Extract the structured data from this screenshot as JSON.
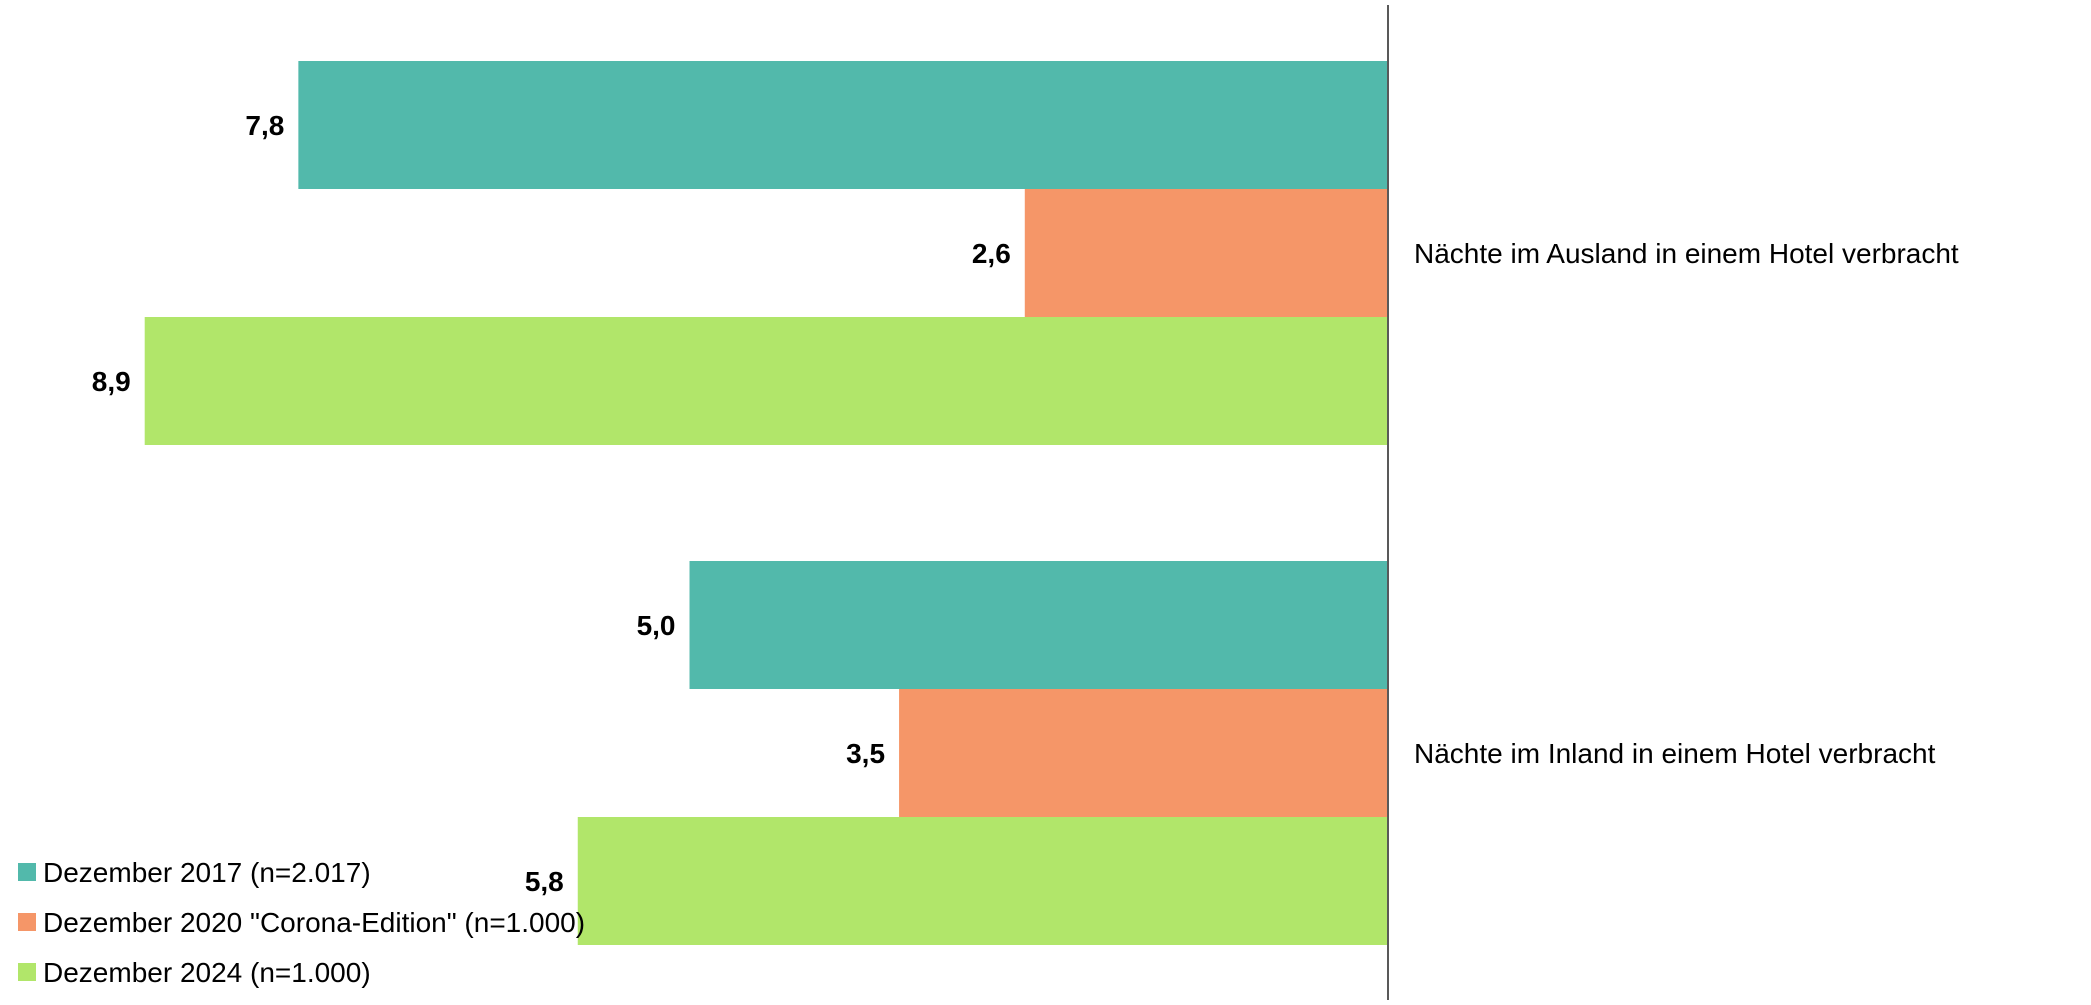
{
  "chart_data": {
    "type": "bar",
    "orientation": "horizontal",
    "direction": "reversed",
    "categories": [
      "Nächte im Ausland in einem Hotel verbracht",
      "Nächte im Inland in einem Hotel verbracht"
    ],
    "series": [
      {
        "name": "Dezember 2017 (n=2.017)",
        "color": "#52b9ab",
        "values": [
          7.8,
          5.0
        ],
        "labels": [
          "7,8",
          "5,0"
        ]
      },
      {
        "name": "Dezember 2020 \"Corona-Edition\" (n=1.000)",
        "color": "#f59668",
        "values": [
          2.6,
          3.5
        ],
        "labels": [
          "2,6",
          "3,5"
        ]
      },
      {
        "name": "Dezember 2024 (n=1.000)",
        "color": "#b1e66a",
        "values": [
          8.9,
          5.8
        ],
        "labels": [
          "8,9",
          "5,8"
        ]
      }
    ],
    "xlim": [
      0,
      9.9
    ],
    "title": "",
    "xlabel": "",
    "ylabel": "",
    "grid": false,
    "legend_position": "bottom-left"
  }
}
